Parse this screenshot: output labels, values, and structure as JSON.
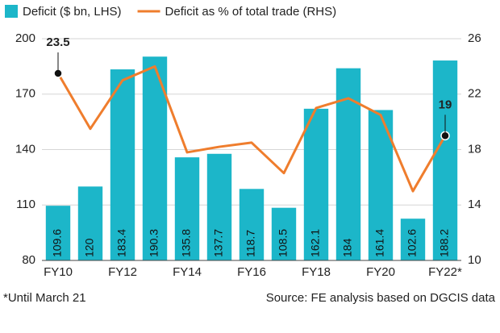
{
  "chart_data": {
    "type": "bar-line",
    "categories": [
      "FY10",
      null,
      "FY12",
      null,
      "FY14",
      null,
      "FY16",
      null,
      "FY18",
      null,
      "FY20",
      null,
      "FY22*"
    ],
    "series": [
      {
        "name": "Deficit ($ bn, LHS)",
        "color": "#1cb6c9",
        "type": "bar",
        "values": [
          109.6,
          120,
          183.4,
          190.3,
          135.8,
          137.7,
          118.7,
          108.5,
          162.1,
          184,
          161.4,
          102.6,
          188.2
        ]
      },
      {
        "name": "Deficit as % of total trade (RHS)",
        "color": "#ef7d2d",
        "type": "line",
        "axis": "y2",
        "values": [
          23.5,
          19.5,
          23.0,
          24.0,
          17.8,
          18.2,
          18.5,
          16.3,
          21.0,
          21.7,
          20.5,
          15.0,
          19
        ],
        "value_labels": [
          "23.5",
          null,
          null,
          null,
          null,
          null,
          null,
          null,
          null,
          null,
          null,
          null,
          "19"
        ]
      }
    ],
    "ylim": [
      80,
      200
    ],
    "yticks": [
      80,
      110,
      140,
      170,
      200
    ],
    "y2lim": [
      10,
      26
    ],
    "y2ticks": [
      10,
      14,
      18,
      22,
      26
    ],
    "grid": true,
    "note": "*Until March 21",
    "source": "Source: FE analysis based on DGCIS data"
  }
}
